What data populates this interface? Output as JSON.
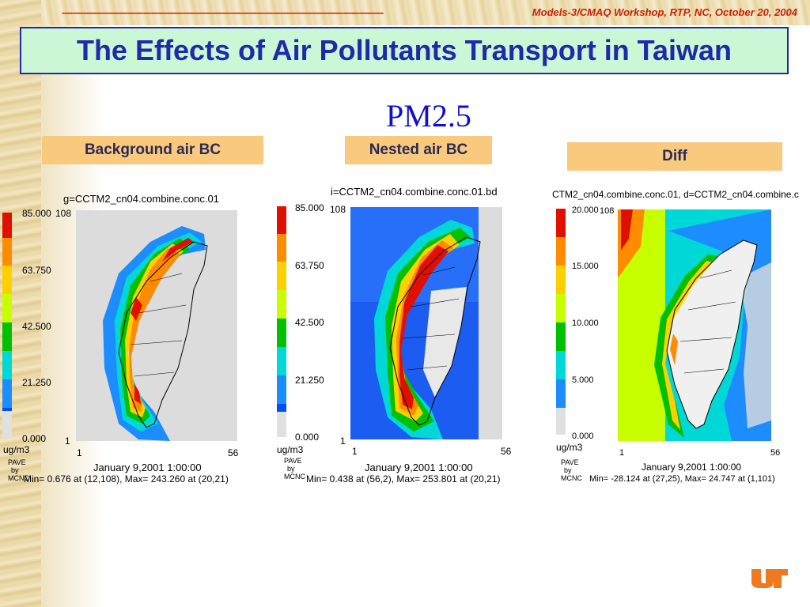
{
  "header": {
    "workshop_text": "Models-3/CMAQ Workshop, RTP, NC, October 20, 2004"
  },
  "title": "The Effects of Air Pollutants Transport in Taiwan",
  "subtitle": "PM2.5",
  "colors": {
    "title_text": "#1f2aa8",
    "title_bg": "#ccf7d6",
    "label_bg": "#f9c97e",
    "header_text": "#cc2200",
    "scale": [
      "#e0e0e0",
      "#0050f0",
      "#1c8cff",
      "#00d8d8",
      "#00c000",
      "#c8ff00",
      "#ffd000",
      "#ff8c00",
      "#e01000"
    ]
  },
  "panels": [
    {
      "label": "Background air BC",
      "file": "g=CCTM2_cn04.combine.conc.01",
      "scale_max": "85.000",
      "scale_ticks": [
        "85.000",
        "63.750",
        "42.500",
        "21.250",
        "0.000"
      ],
      "unit": "ug/m3",
      "axis_top": "108",
      "axis_bottom": "1",
      "axis_left": "1",
      "axis_right": "56",
      "date": "January 9,2001 1:00:00",
      "minmax": "Min=   0.676 at (12,108), Max= 243.260 at (20,21)",
      "pave": [
        "PAVE",
        "by",
        "MCNC"
      ]
    },
    {
      "label": "Nested air BC",
      "file": "i=CCTM2_cn04.combine.conc.01.bd",
      "scale_max": "85.000",
      "scale_ticks": [
        "85.000",
        "63.750",
        "42.500",
        "21.250",
        "0.000"
      ],
      "unit": "ug/m3",
      "axis_top": "108",
      "axis_bottom": "1",
      "axis_left": "1",
      "axis_right": "56",
      "date": "January 9,2001 1:00:00",
      "minmax": "Min=   0.438 at (56,2), Max= 253.801 at (20,21)",
      "pave": [
        "PAVE",
        "by",
        "MCNC"
      ]
    },
    {
      "label": "Diff",
      "file": "CTM2_cn04.combine.conc.01, d=CCTM2_cn04.combine.c",
      "scale_max": "20.000",
      "scale_ticks": [
        "20.000",
        "15.000",
        "10.000",
        "5.000",
        "0.000"
      ],
      "unit": "ug/m3",
      "axis_top": "108",
      "axis_bottom": "1",
      "axis_left": "1",
      "axis_right": "56",
      "date": "January 9,2001 1:00:00",
      "minmax": "Min= -28.124 at (27,25), Max=  24.747 at (1,101)",
      "pave": [
        "PAVE",
        "by",
        "MCNC"
      ]
    }
  ]
}
